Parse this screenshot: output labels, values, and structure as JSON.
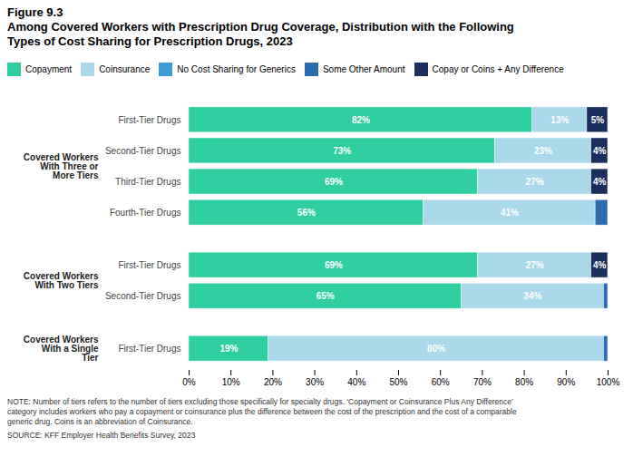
{
  "chart_data": {
    "type": "bar",
    "orientation": "horizontal",
    "stacked": true,
    "title": "Figure 9.3",
    "subtitle": "Among Covered Workers with Prescription Drug Coverage, Distribution with the Following\nTypes of Cost Sharing for Prescription Drugs, 2023",
    "categories": [
      "First-Tier Drugs",
      "Second-Tier Drugs",
      "Third-Tier Drugs",
      "Fourth-Tier Drugs",
      "First-Tier Drugs",
      "Second-Tier Drugs",
      "First-Tier Drugs"
    ],
    "groups": [
      {
        "label": "Covered Workers\nWith Three or\nMore Tiers",
        "categories": [
          "First-Tier Drugs",
          "Second-Tier Drugs",
          "Third-Tier Drugs",
          "Fourth-Tier Drugs"
        ]
      },
      {
        "label": "Covered Workers\nWith Two Tiers",
        "categories": [
          "First-Tier Drugs",
          "Second-Tier Drugs"
        ]
      },
      {
        "label": "Covered Workers\nWith a Single\nTier",
        "categories": [
          "First-Tier Drugs"
        ]
      }
    ],
    "series": [
      {
        "name": "Copayment",
        "color": "#2ecea0",
        "values": [
          82,
          73,
          69,
          56,
          69,
          65,
          19
        ],
        "value_labels": [
          "82%",
          "73%",
          "69%",
          "56%",
          "69%",
          "65%",
          "19%"
        ]
      },
      {
        "name": "Coinsurance",
        "color": "#a8d8ea",
        "values": [
          13,
          23,
          27,
          41,
          27,
          34,
          80
        ],
        "value_labels": [
          "13%",
          "23%",
          "27%",
          "41%",
          "27%",
          "34%",
          "80%"
        ]
      },
      {
        "name": "No Cost Sharing for Generics",
        "color": "#3a9fd6",
        "values": [
          0,
          0,
          0,
          0,
          0,
          0,
          0
        ],
        "value_labels": [
          null,
          null,
          null,
          null,
          null,
          null,
          null
        ]
      },
      {
        "name": "Some Other Amount",
        "color": "#2b6cb0",
        "values": [
          0,
          0,
          0,
          3,
          0,
          1,
          1
        ],
        "value_labels": [
          null,
          null,
          null,
          null,
          null,
          null,
          null
        ]
      },
      {
        "name": "Copay or Coins + Any Difference",
        "color": "#1a2f5e",
        "values": [
          5,
          4,
          4,
          0,
          4,
          0,
          0
        ],
        "value_labels": [
          "5%",
          "4%",
          "4%",
          null,
          "4%",
          null,
          null
        ]
      }
    ],
    "xlim": [
      0,
      100
    ],
    "xticks": [
      {
        "value": 0,
        "label": "0%"
      },
      {
        "value": 10,
        "label": "10%"
      },
      {
        "value": 20,
        "label": "20%"
      },
      {
        "value": 30,
        "label": "30%"
      },
      {
        "value": 40,
        "label": "40%"
      },
      {
        "value": 50,
        "label": "50%"
      },
      {
        "value": 60,
        "label": "60%"
      },
      {
        "value": 70,
        "label": "70%"
      },
      {
        "value": 80,
        "label": "80%"
      },
      {
        "value": 90,
        "label": "90%"
      },
      {
        "value": 100,
        "label": "100%"
      }
    ],
    "data_labels": true,
    "grid": false,
    "legend": "top",
    "notes": [
      "NOTE: Number of tiers refers to the number of tiers excluding those specifically for specialty drugs. ‘Copayment or Coinsurance Plus Any Difference’",
      "category includes workers who pay a copayment or coinsurance plus the difference between the cost of the prescription and the cost of a comparable",
      "generic drug.  Coins is an abbreviation of Coinsurance."
    ],
    "source": "SOURCE: KFF Employer Health Benefits Survey, 2023"
  }
}
